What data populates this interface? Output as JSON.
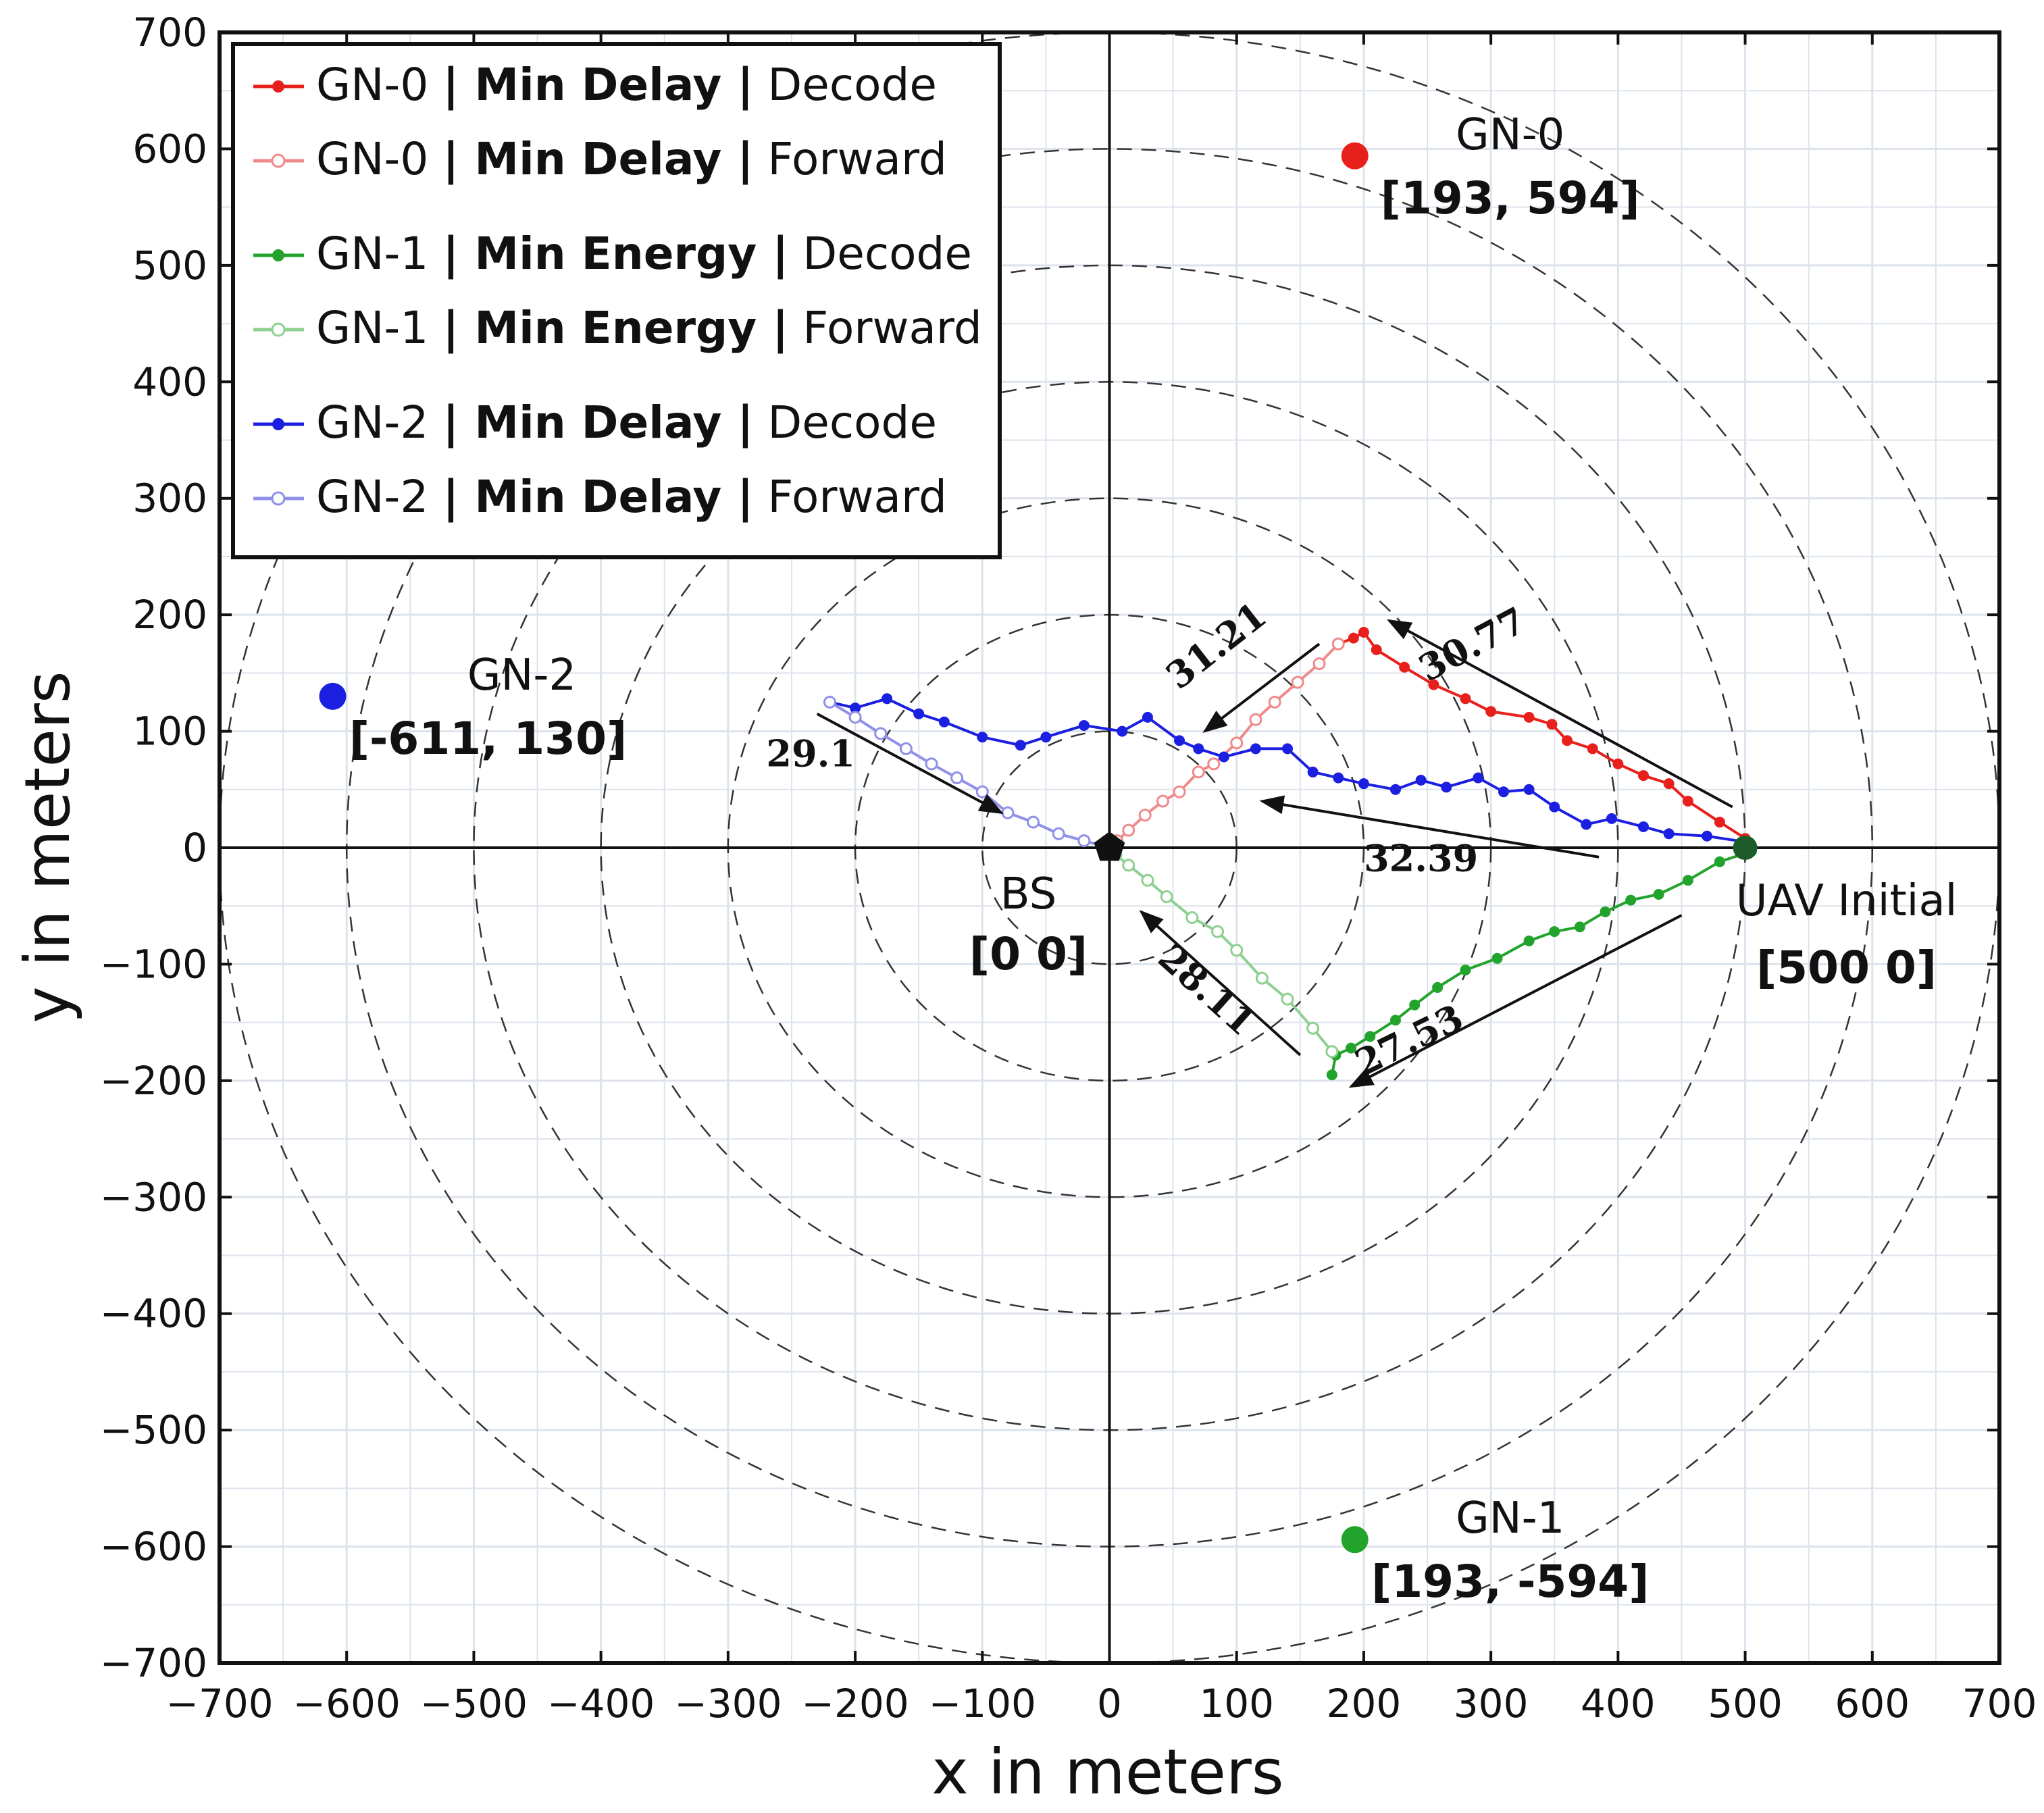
{
  "chart_data": {
    "type": "line",
    "title": "",
    "xlabel": "x in meters",
    "ylabel": "y in meters",
    "xlim": [
      -700,
      700
    ],
    "ylim": [
      -700,
      700
    ],
    "xticks": [
      -700,
      -600,
      -500,
      -400,
      -300,
      -200,
      -100,
      0,
      100,
      200,
      300,
      400,
      500,
      600,
      700
    ],
    "yticks": [
      -700,
      -600,
      -500,
      -400,
      -300,
      -200,
      -100,
      0,
      100,
      200,
      300,
      400,
      500,
      600,
      700
    ],
    "xtick_labels": [
      "−700",
      "−600",
      "−500",
      "−400",
      "−300",
      "−200",
      "−100",
      "0",
      "100",
      "200",
      "300",
      "400",
      "500",
      "600",
      "700"
    ],
    "ytick_labels": [
      "−700",
      "−600",
      "−500",
      "−400",
      "−300",
      "−200",
      "−100",
      "0",
      "100",
      "200",
      "300",
      "400",
      "500",
      "600",
      "700"
    ],
    "grid": true,
    "concentric_circle_radii": [
      100,
      200,
      300,
      400,
      500,
      600,
      700
    ],
    "legend_position": "top-left",
    "series": [
      {
        "name": "GN-0 | Min Delay | Decode",
        "name_parts": [
          "GN-0 ",
          "| Min Delay |",
          " Decode"
        ],
        "color": "#e8201c",
        "marker": "filled",
        "points": [
          [
            500,
            8
          ],
          [
            480,
            22
          ],
          [
            455,
            40
          ],
          [
            440,
            55
          ],
          [
            420,
            62
          ],
          [
            400,
            72
          ],
          [
            380,
            85
          ],
          [
            360,
            92
          ],
          [
            348,
            106
          ],
          [
            330,
            112
          ],
          [
            300,
            117
          ],
          [
            280,
            128
          ],
          [
            255,
            140
          ],
          [
            232,
            155
          ],
          [
            210,
            170
          ],
          [
            200,
            185
          ],
          [
            192,
            180
          ],
          [
            180,
            175
          ]
        ]
      },
      {
        "name": "GN-0 | Min Delay | Forward",
        "name_parts": [
          "GN-0 ",
          "| Min Delay |",
          " Forward"
        ],
        "color": "#f08a8a",
        "marker": "hollow",
        "points": [
          [
            180,
            175
          ],
          [
            165,
            158
          ],
          [
            148,
            142
          ],
          [
            130,
            125
          ],
          [
            115,
            110
          ],
          [
            100,
            90
          ],
          [
            82,
            72
          ],
          [
            70,
            65
          ],
          [
            55,
            48
          ],
          [
            42,
            40
          ],
          [
            28,
            28
          ],
          [
            15,
            15
          ],
          [
            6,
            6
          ],
          [
            0,
            0
          ]
        ]
      },
      {
        "name": "GN-1 | Min Energy | Decode",
        "name_parts": [
          "GN-1 ",
          "| Min Energy |",
          " Decode"
        ],
        "color": "#22a32c",
        "marker": "filled",
        "points": [
          [
            505,
            -3
          ],
          [
            480,
            -12
          ],
          [
            455,
            -28
          ],
          [
            432,
            -40
          ],
          [
            410,
            -45
          ],
          [
            390,
            -55
          ],
          [
            370,
            -68
          ],
          [
            350,
            -72
          ],
          [
            330,
            -80
          ],
          [
            305,
            -95
          ],
          [
            280,
            -105
          ],
          [
            258,
            -120
          ],
          [
            240,
            -135
          ],
          [
            225,
            -148
          ],
          [
            205,
            -162
          ],
          [
            190,
            -172
          ],
          [
            178,
            -178
          ],
          [
            175,
            -195
          ]
        ]
      },
      {
        "name": "GN-1 | Min Energy | Forward",
        "name_parts": [
          "GN-1 ",
          "| Min Energy |",
          " Forward"
        ],
        "color": "#8ed08f",
        "marker": "hollow",
        "points": [
          [
            175,
            -175
          ],
          [
            160,
            -155
          ],
          [
            140,
            -130
          ],
          [
            120,
            -112
          ],
          [
            100,
            -88
          ],
          [
            85,
            -72
          ],
          [
            65,
            -60
          ],
          [
            45,
            -42
          ],
          [
            30,
            -28
          ],
          [
            15,
            -15
          ],
          [
            5,
            -6
          ],
          [
            0,
            0
          ]
        ]
      },
      {
        "name": "GN-2 | Min Delay | Decode",
        "name_parts": [
          "GN-2 ",
          "| Min Delay |",
          " Decode"
        ],
        "color": "#1b1fe0",
        "marker": "filled",
        "points": [
          [
            500,
            5
          ],
          [
            470,
            10
          ],
          [
            440,
            12
          ],
          [
            420,
            18
          ],
          [
            395,
            25
          ],
          [
            375,
            20
          ],
          [
            350,
            35
          ],
          [
            330,
            50
          ],
          [
            310,
            48
          ],
          [
            290,
            60
          ],
          [
            265,
            52
          ],
          [
            245,
            58
          ],
          [
            225,
            50
          ],
          [
            200,
            55
          ],
          [
            180,
            60
          ],
          [
            160,
            65
          ],
          [
            140,
            85
          ],
          [
            115,
            85
          ],
          [
            90,
            78
          ],
          [
            70,
            85
          ],
          [
            55,
            92
          ],
          [
            30,
            112
          ],
          [
            10,
            100
          ],
          [
            -20,
            105
          ],
          [
            -50,
            95
          ],
          [
            -70,
            88
          ],
          [
            -100,
            95
          ],
          [
            -130,
            108
          ],
          [
            -150,
            115
          ],
          [
            -175,
            128
          ],
          [
            -200,
            120
          ],
          [
            -220,
            125
          ]
        ]
      },
      {
        "name": "GN-2 | Min Delay | Forward",
        "name_parts": [
          "GN-2 ",
          "| Min Delay |",
          " Forward"
        ],
        "color": "#8f90e8",
        "marker": "hollow",
        "points": [
          [
            -220,
            125
          ],
          [
            -200,
            112
          ],
          [
            -180,
            98
          ],
          [
            -160,
            85
          ],
          [
            -140,
            72
          ],
          [
            -120,
            60
          ],
          [
            -100,
            48
          ],
          [
            -80,
            30
          ],
          [
            -60,
            22
          ],
          [
            -40,
            12
          ],
          [
            -20,
            6
          ],
          [
            0,
            0
          ]
        ]
      }
    ],
    "nodes": [
      {
        "label": "GN-0",
        "coords_text": "[193, 594]",
        "x": 193,
        "y": 594,
        "color": "#e8201c"
      },
      {
        "label": "GN-1",
        "coords_text": "[193, -594]",
        "x": 193,
        "y": -594,
        "color": "#22a32c"
      },
      {
        "label": "GN-2",
        "coords_text": "[-611, 130]",
        "x": -611,
        "y": 130,
        "color": "#1b1fe0"
      },
      {
        "label": "BS",
        "coords_text": "[0 0]",
        "x": 0,
        "y": 0,
        "color": "#111111"
      },
      {
        "label": "UAV Initial",
        "coords_text": "[500 0]",
        "x": 500,
        "y": 0,
        "color": "#111111"
      }
    ],
    "annotations": [
      {
        "text": "30.77",
        "from": [
          490,
          35
        ],
        "to": [
          220,
          195
        ],
        "label_at": [
          290,
          165
        ],
        "angle": -28
      },
      {
        "text": "31.21",
        "from": [
          165,
          175
        ],
        "to": [
          75,
          100
        ],
        "label_at": [
          90,
          165
        ],
        "angle": -38
      },
      {
        "text": "32.39",
        "from": [
          385,
          -8
        ],
        "to": [
          120,
          40
        ],
        "label_at": [
          245,
          -20
        ],
        "angle": 0
      },
      {
        "text": "29.1",
        "from": [
          -230,
          115
        ],
        "to": [
          -85,
          30
        ],
        "label_at": [
          -235,
          70
        ],
        "angle": 0
      },
      {
        "text": "28.11",
        "from": [
          150,
          -178
        ],
        "to": [
          25,
          -55
        ],
        "label_at": [
          70,
          -130
        ],
        "angle": 42
      },
      {
        "text": "27.53",
        "from": [
          450,
          -58
        ],
        "to": [
          190,
          -205
        ],
        "label_at": [
          240,
          -175
        ],
        "angle": -26
      }
    ]
  }
}
